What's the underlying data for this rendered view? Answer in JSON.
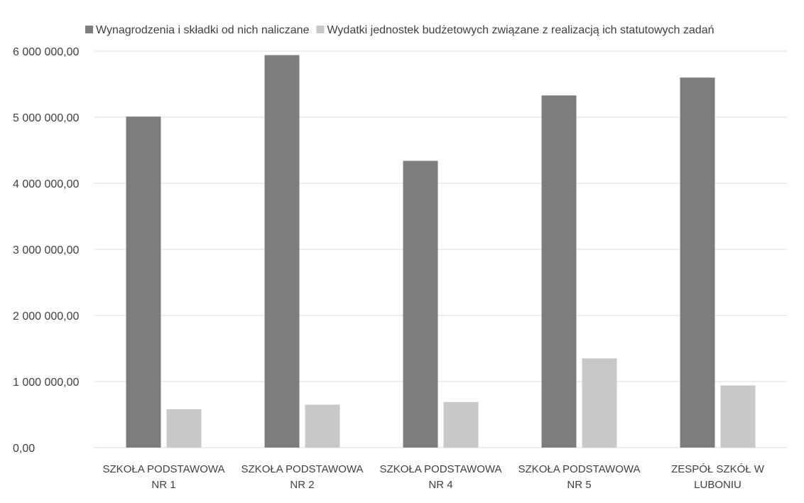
{
  "chart_data": {
    "type": "bar",
    "title": "",
    "xlabel": "",
    "ylabel": "",
    "categories": [
      [
        "SZKOŁA PODSTAWOWA",
        "NR 1"
      ],
      [
        "SZKOŁA PODSTAWOWA",
        "NR 2"
      ],
      [
        "SZKOŁA PODSTAWOWA",
        "NR 4"
      ],
      [
        "SZKOŁA PODSTAWOWA",
        "NR 5"
      ],
      [
        "ZESPÓŁ SZKÓŁ W",
        "LUBONIU"
      ]
    ],
    "series": [
      {
        "name": "Wynagrodzenia i składki od nich naliczane",
        "color": "#7d7d7d",
        "values": [
          5010000,
          5940000,
          4340000,
          5330000,
          5600000
        ]
      },
      {
        "name": "Wydatki jednostek budżetowych związane z realizacją ich statutowych zadań",
        "color": "#c8c8c8",
        "values": [
          580000,
          650000,
          690000,
          1350000,
          940000
        ]
      }
    ],
    "ylim": [
      0,
      6000000
    ],
    "yticks": [
      0,
      1000000,
      2000000,
      3000000,
      4000000,
      5000000,
      6000000
    ],
    "ytick_labels": [
      "0,00",
      "1 000 000,00",
      "2 000 000,00",
      "3 000 000,00",
      "4 000 000,00",
      "5 000 000,00",
      "6 000 000,00"
    ],
    "grid": true,
    "legend_position": "top"
  }
}
